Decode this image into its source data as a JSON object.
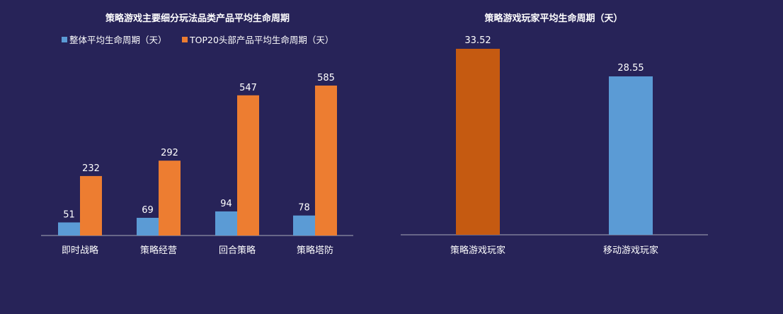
{
  "chart_data": [
    {
      "type": "bar",
      "title": "策略游戏主要细分玩法品类产品平均生命周期",
      "categories": [
        "即时战略",
        "策略经营",
        "回合策略",
        "策略塔防"
      ],
      "series": [
        {
          "name": "整体平均生命周期（天）",
          "values": [
            51,
            69,
            94,
            78
          ],
          "color": "#5b9bd5"
        },
        {
          "name": "TOP20头部产品平均生命周期（天）",
          "values": [
            232,
            292,
            547,
            585
          ],
          "color": "#ed7d31"
        }
      ],
      "legend": "top",
      "ylim": [
        0,
        600
      ],
      "grid": false
    },
    {
      "type": "bar",
      "title": "策略游戏玩家平均生命周期（天）",
      "categories": [
        "策略游戏玩家",
        "移动游戏玩家"
      ],
      "values": [
        "33.52",
        "28.55"
      ],
      "colors": [
        "#c55a11",
        "#5b9bd5"
      ],
      "ylim": [
        0,
        35
      ],
      "grid": false
    }
  ]
}
